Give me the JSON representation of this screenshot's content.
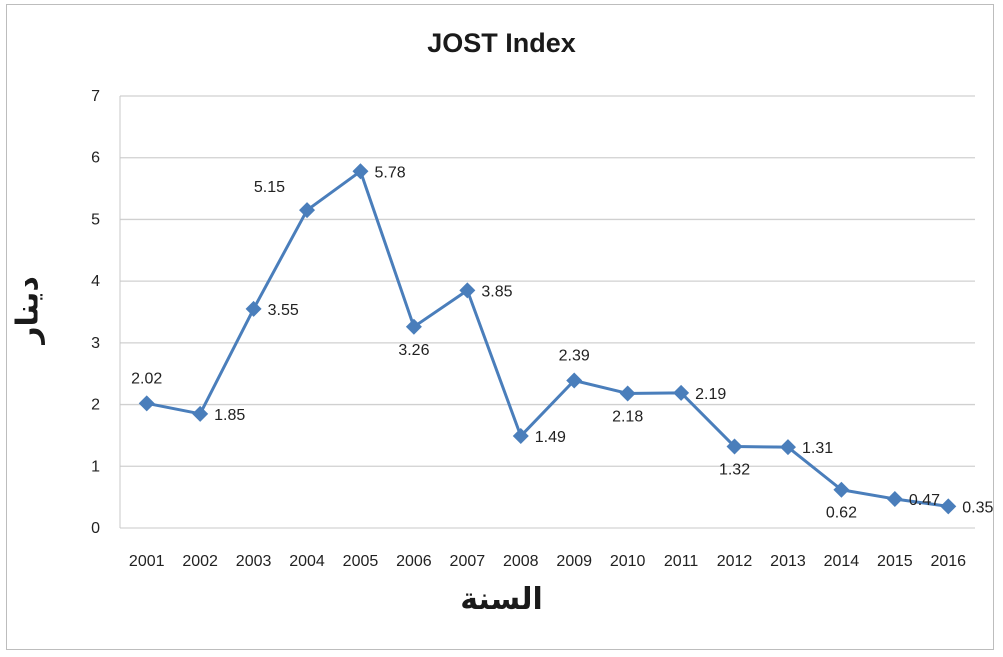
{
  "chart_data": {
    "type": "line",
    "title": "JOST Index",
    "xlabel": "السنة",
    "ylabel": "دينار",
    "x": [
      "2001",
      "2002",
      "2003",
      "2004",
      "2005",
      "2006",
      "2007",
      "2008",
      "2009",
      "2010",
      "2011",
      "2012",
      "2013",
      "2014",
      "2015",
      "2016"
    ],
    "series": [
      {
        "values": [
          2.02,
          1.85,
          3.55,
          5.15,
          5.78,
          3.26,
          3.85,
          1.49,
          2.39,
          2.18,
          2.19,
          1.32,
          1.31,
          0.62,
          0.47,
          0.35
        ],
        "color": "#4a7ebb",
        "labels": [
          "2.02",
          "1.85",
          "3.55",
          "5.15",
          "5.78",
          "3.26",
          "3.85",
          "1.49",
          "2.39",
          "2.18",
          "2.19",
          "1.32",
          "1.31",
          "0.62",
          "0.47",
          "0.35"
        ],
        "label_position": [
          "above",
          "right",
          "right",
          "left",
          "right",
          "below",
          "right",
          "right",
          "above",
          "below",
          "right",
          "below",
          "right",
          "below",
          "right",
          "right"
        ]
      }
    ],
    "ylim": [
      0,
      7
    ],
    "yticks": [
      "0",
      "1",
      "2",
      "3",
      "4",
      "5",
      "6",
      "7"
    ],
    "grid": true,
    "legend": "none"
  }
}
